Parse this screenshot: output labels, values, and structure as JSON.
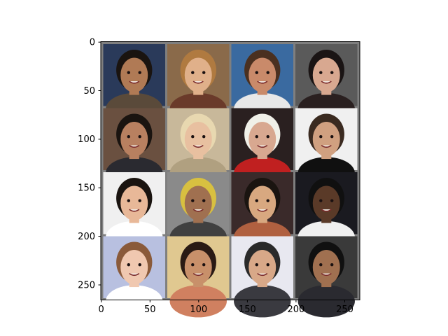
{
  "figure": {
    "x_ticks": [
      "0",
      "50",
      "100",
      "150",
      "200",
      "250"
    ],
    "y_ticks": [
      "0",
      "50",
      "100",
      "150",
      "200",
      "250"
    ]
  },
  "grid": {
    "rows": 4,
    "cols": 4,
    "extent": 266,
    "tiles": [
      {
        "name": "face-tile-r1c1",
        "bg": "#2a3a5a",
        "skin": "#b07a55",
        "hair": "#1a1410",
        "shirt": "#5a4a3a"
      },
      {
        "name": "face-tile-r1c2",
        "bg": "#8a6a4a",
        "skin": "#e0b08a",
        "hair": "#b07a40",
        "shirt": "#6a3a2a"
      },
      {
        "name": "face-tile-r1c3",
        "bg": "#3a6aa0",
        "skin": "#c98a6a",
        "hair": "#4a3020",
        "shirt": "#e8e8e8"
      },
      {
        "name": "face-tile-r1c4",
        "bg": "#5a5a5a",
        "skin": "#d8a890",
        "hair": "#1a1414",
        "shirt": "#2a2020"
      },
      {
        "name": "face-tile-r2c1",
        "bg": "#6a5040",
        "skin": "#b88060",
        "hair": "#1a1410",
        "shirt": "#2a2a30"
      },
      {
        "name": "face-tile-r2c2",
        "bg": "#c8b89a",
        "skin": "#e8c0a0",
        "hair": "#e8d8b0",
        "shirt": "#b0a080"
      },
      {
        "name": "face-tile-r2c3",
        "bg": "#2a2020",
        "skin": "#d8a890",
        "hair": "#f0f0e8",
        "shirt": "#c02020"
      },
      {
        "name": "face-tile-r2c4",
        "bg": "#f0f0f0",
        "skin": "#d0a080",
        "hair": "#3a2a20",
        "shirt": "#101010"
      },
      {
        "name": "face-tile-r3c1",
        "bg": "#f0f0f0",
        "skin": "#e8b898",
        "hair": "#1a1410",
        "shirt": "#ffffff"
      },
      {
        "name": "face-tile-r3c2",
        "bg": "#8a8a8a",
        "skin": "#a07050",
        "hair": "#d8c040",
        "shirt": "#404040"
      },
      {
        "name": "face-tile-r3c3",
        "bg": "#3a2a2a",
        "skin": "#d8a880",
        "hair": "#1a1410",
        "shirt": "#b06040"
      },
      {
        "name": "face-tile-r3c4",
        "bg": "#1a1a20",
        "skin": "#5a3a28",
        "hair": "#101010",
        "shirt": "#f0f0f0"
      },
      {
        "name": "face-tile-r4c1",
        "bg": "#b8c0e0",
        "skin": "#f0c8b0",
        "hair": "#8a5a3a",
        "shirt": "#ffffff"
      },
      {
        "name": "face-tile-r4c2",
        "bg": "#e0c890",
        "skin": "#c8906a",
        "hair": "#2a1a14",
        "shirt": "#d08060"
      },
      {
        "name": "face-tile-r4c3",
        "bg": "#e8e8f0",
        "skin": "#d8a888",
        "hair": "#2a2a2a",
        "shirt": "#3a3a40"
      },
      {
        "name": "face-tile-r4c4",
        "bg": "#3a3a3a",
        "skin": "#a07050",
        "hair": "#101010",
        "shirt": "#2a2a30"
      }
    ]
  }
}
